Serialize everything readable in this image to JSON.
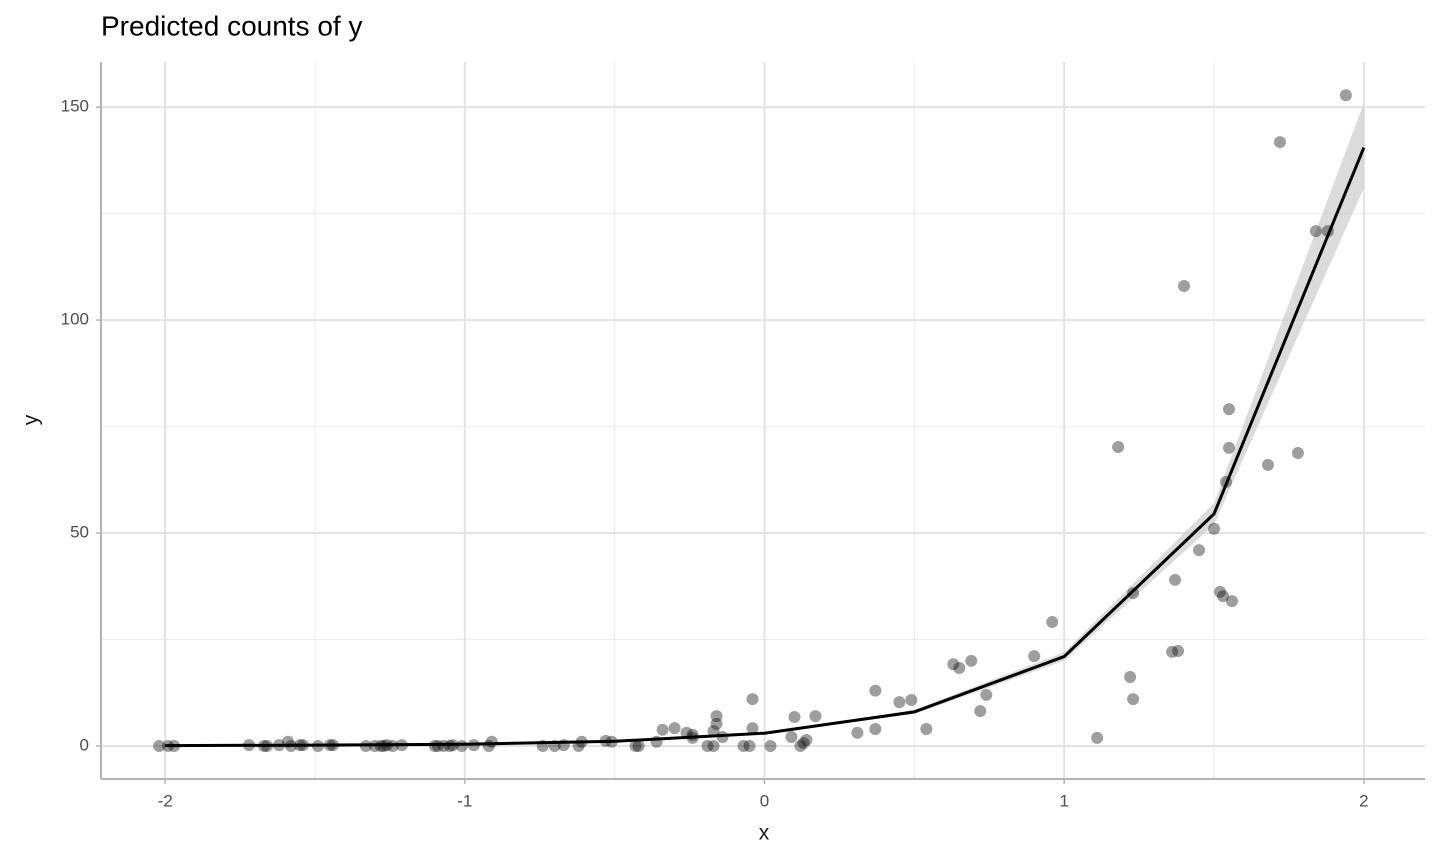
{
  "chart_data": {
    "type": "scatter",
    "title": "Predicted counts of y",
    "x_label": "x",
    "y_label": "y",
    "xlim": [
      -2.214,
      2.204
    ],
    "ylim": [
      -7.75,
      160.6
    ],
    "xticks": [
      -2,
      -1,
      0,
      1,
      2
    ],
    "yticks": [
      0,
      50,
      100,
      150
    ],
    "x_minor_grid": [
      -1.5,
      -0.5,
      0.5,
      1.5
    ],
    "y_minor_grid": [
      25,
      75,
      125
    ],
    "grid": true,
    "points": {
      "color": "#000000",
      "opacity": 0.38,
      "x": [
        -2.02,
        -1.99,
        -1.97,
        -1.72,
        -1.67,
        -1.66,
        -1.62,
        -1.59,
        -1.58,
        -1.55,
        -1.54,
        -1.49,
        -1.45,
        -1.44,
        -1.33,
        -1.3,
        -1.28,
        -1.27,
        -1.26,
        -1.24,
        -1.21,
        -1.1,
        -1.09,
        -1.07,
        -1.05,
        -1.04,
        -1.01,
        -0.97,
        -0.92,
        -0.91,
        -0.74,
        -0.7,
        -0.67,
        -0.62,
        -0.61,
        -0.53,
        -0.51,
        -0.43,
        -0.42,
        -0.36,
        -0.34,
        -0.3,
        -0.26,
        -0.24,
        -0.24,
        -0.19,
        -0.17,
        -0.17,
        -0.16,
        -0.16,
        -0.14,
        -0.07,
        -0.05,
        -0.04,
        -0.04,
        0.02,
        0.09,
        0.1,
        0.12,
        0.13,
        0.14,
        0.17,
        0.31,
        0.37,
        0.37,
        0.45,
        0.49,
        0.54,
        0.63,
        0.65,
        0.69,
        0.72,
        0.74,
        0.9,
        0.96,
        1.11,
        1.18,
        1.22,
        1.23,
        1.23,
        1.36,
        1.37,
        1.38,
        1.4,
        1.45,
        1.5,
        1.52,
        1.53,
        1.54,
        1.55,
        1.55,
        1.56,
        1.68,
        1.72,
        1.78,
        1.84,
        1.88,
        1.94
      ],
      "y": [
        0,
        0,
        0,
        0.2,
        0,
        0,
        0.2,
        1,
        0,
        0.2,
        0.2,
        0,
        0.2,
        0.2,
        0,
        0,
        0,
        0,
        0.2,
        0,
        0.2,
        0,
        0,
        0,
        0,
        0.2,
        0,
        0.2,
        0,
        1,
        0,
        0,
        0.2,
        0,
        1,
        1.2,
        1,
        0,
        0,
        1,
        3.8,
        4.2,
        3.1,
        2.6,
        1.9,
        0,
        0,
        3.5,
        7,
        5.2,
        2.1,
        0,
        0,
        4.2,
        11,
        0,
        2.1,
        6.8,
        0,
        0.7,
        1.4,
        7,
        3.1,
        4,
        13,
        10.3,
        10.8,
        4,
        19.2,
        18.3,
        20,
        8.2,
        12,
        21.1,
        29.1,
        1.9,
        70.2,
        16.2,
        35.9,
        11,
        22.1,
        39,
        22.3,
        108,
        46,
        51,
        36.2,
        35.2,
        62,
        70,
        79.1,
        34,
        66,
        141.8,
        68.8,
        120.9,
        120.9,
        152.8
      ]
    },
    "fit": {
      "color": "#000000",
      "ribbon_color": "#cccccc",
      "x": [
        -2,
        -1.5,
        -1,
        -0.5,
        0,
        0.5,
        1,
        1.5,
        2
      ],
      "y": [
        0.1,
        0.2,
        0.4,
        1.1,
        3,
        8,
        21,
        54.5,
        140.5
      ],
      "lower": [
        0.1,
        0.2,
        0.4,
        1,
        2.8,
        7.5,
        20,
        52,
        131
      ],
      "upper": [
        0.1,
        0.2,
        0.4,
        1.2,
        3.2,
        8.5,
        22,
        57,
        151
      ]
    }
  }
}
